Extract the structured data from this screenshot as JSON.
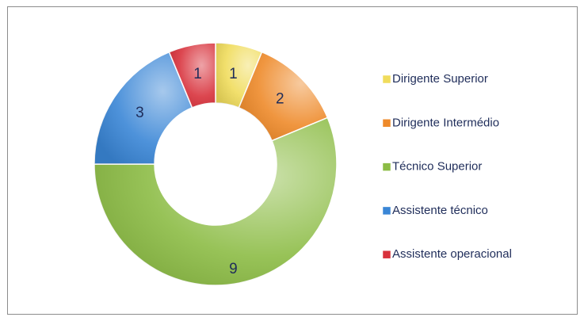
{
  "chart_data": {
    "type": "donut",
    "categories": [
      "Dirigente Superior",
      "Dirigente Intermédio",
      "Técnico Superior",
      "Assistente técnico",
      "Assistente operacional"
    ],
    "values": [
      1,
      2,
      9,
      3,
      1
    ],
    "colors": [
      "#f0dc5c",
      "#ee8a2a",
      "#8cbc45",
      "#3a86d6",
      "#d8323c"
    ],
    "legend": "right"
  }
}
